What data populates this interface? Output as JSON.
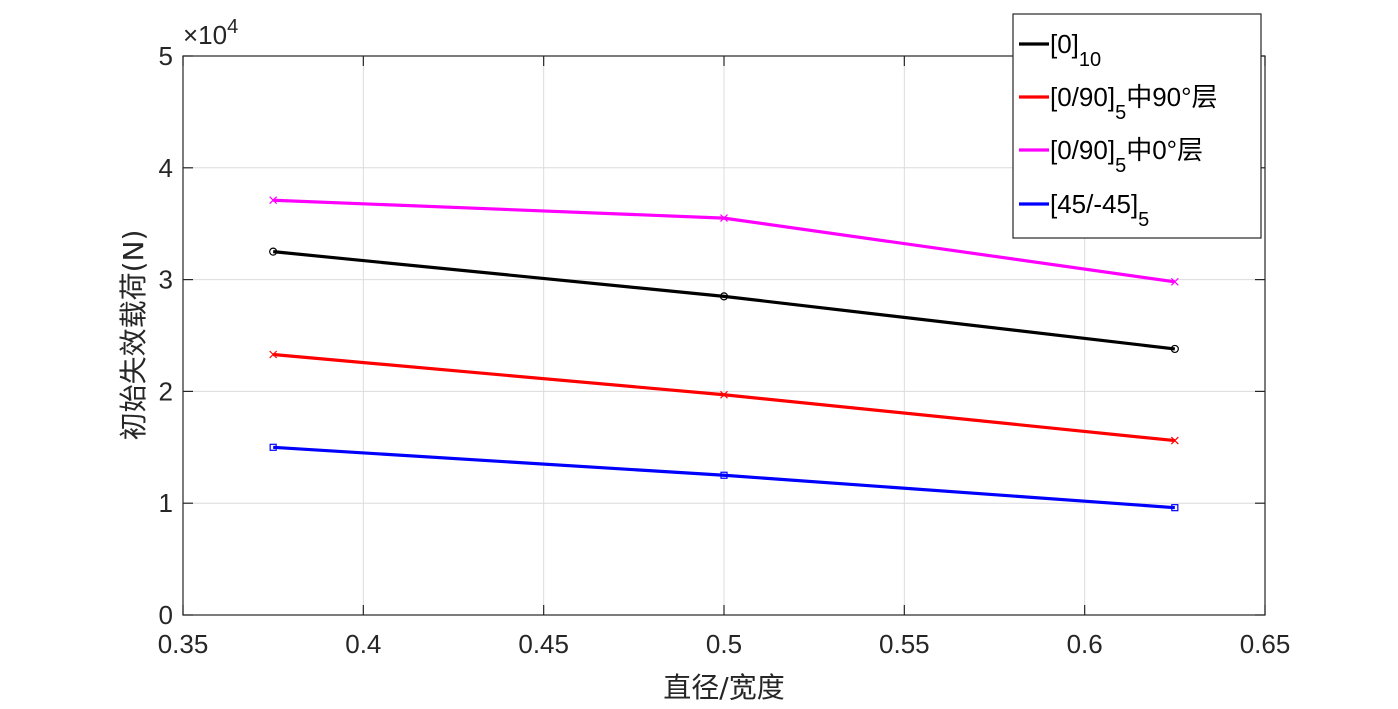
{
  "chart_data": {
    "type": "line",
    "xlabel": "直径/宽度",
    "ylabel": "初始失效载荷(N)",
    "xlim": [
      0.35,
      0.65
    ],
    "ylim": [
      0,
      50000
    ],
    "x_ticks": [
      "0.35",
      "0.4",
      "0.45",
      "0.5",
      "0.55",
      "0.6",
      "0.65"
    ],
    "y_ticks": [
      "0",
      "1",
      "2",
      "3",
      "4",
      "5"
    ],
    "y_exponent": {
      "prefix": "×10",
      "power": "4"
    },
    "grid": true,
    "legend_position": "top-right",
    "x": [
      0.375,
      0.5,
      0.625
    ],
    "series": [
      {
        "name": "[0]",
        "name_sub": "10",
        "name_suffix": "",
        "color": "#000000",
        "marker": "circle",
        "values": [
          32500,
          28500,
          23800
        ]
      },
      {
        "name": "[0/90]",
        "name_sub": "5",
        "name_suffix": "中90°层",
        "color": "#ff0000",
        "marker": "x",
        "values": [
          23300,
          19700,
          15600
        ]
      },
      {
        "name": "[0/90]",
        "name_sub": "5",
        "name_suffix": "中0°层",
        "color": "#ff00ff",
        "marker": "x",
        "values": [
          37100,
          35500,
          29800
        ]
      },
      {
        "name": "[45/-45]",
        "name_sub": "5",
        "name_suffix": "",
        "color": "#0000ff",
        "marker": "square",
        "values": [
          15000,
          12500,
          9600
        ]
      }
    ]
  }
}
